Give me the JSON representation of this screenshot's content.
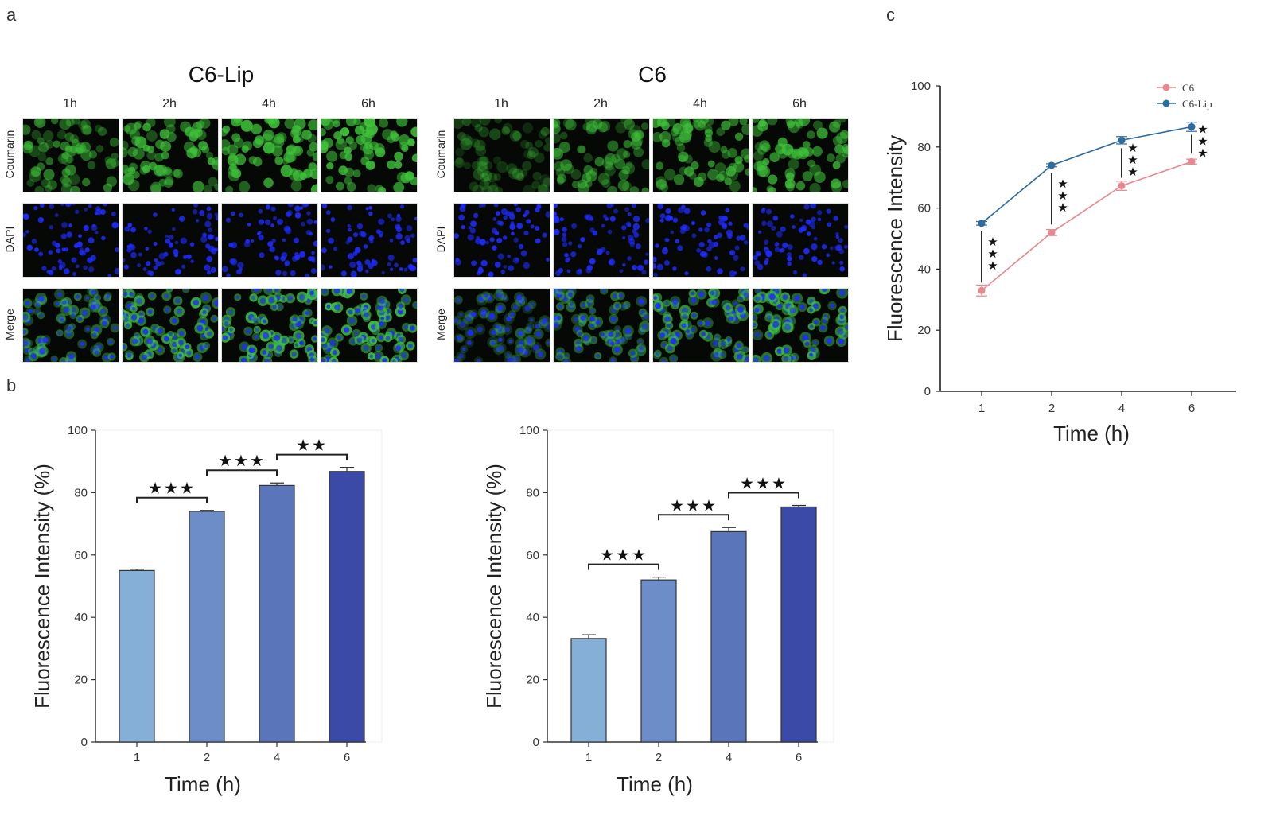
{
  "panel_labels": {
    "a": "a",
    "b": "b",
    "c": "c"
  },
  "micrographs": {
    "groups": [
      {
        "title": "C6-Lip",
        "intensity": [
          0.55,
          0.74,
          0.82,
          0.87
        ]
      },
      {
        "title": "C6",
        "intensity": [
          0.33,
          0.52,
          0.67,
          0.75
        ]
      }
    ],
    "timepoints": [
      "1h",
      "2h",
      "4h",
      "6h"
    ],
    "rows": [
      "Coumarin",
      "DAPI",
      "Merge"
    ]
  },
  "colors": {
    "bar_fills": [
      "#85afd6",
      "#6d8dc9",
      "#5b75bb",
      "#3b4aa6"
    ],
    "c6": "#e8888e",
    "c6lip": "#2c6aa0",
    "coumarin_green": "#3fc23a",
    "dapi_blue": "#1f2bff"
  },
  "chart_data": [
    {
      "type": "bar",
      "categories": [
        "1",
        "2",
        "4",
        "6"
      ],
      "values": [
        55,
        74,
        82.3,
        86.8
      ],
      "errors": [
        0.4,
        0.3,
        0.8,
        1.3
      ],
      "xlabel": "Time (h)",
      "ylabel": "Fluorescence Intensity (%)",
      "ylim": [
        0,
        100
      ],
      "yticks": [
        "0",
        "20",
        "40",
        "60",
        "80",
        "100"
      ],
      "significance": [
        {
          "from": 0,
          "to": 1,
          "label": "★★★"
        },
        {
          "from": 1,
          "to": 2,
          "label": "★★★"
        },
        {
          "from": 2,
          "to": 3,
          "label": "★★"
        }
      ]
    },
    {
      "type": "bar",
      "categories": [
        "1",
        "2",
        "4",
        "6"
      ],
      "values": [
        33.2,
        52,
        67.5,
        75.4
      ],
      "errors": [
        1.2,
        0.9,
        1.3,
        0.5
      ],
      "xlabel": "Time (h)",
      "ylabel": "Fluorescence Intensity (%)",
      "ylim": [
        0,
        100
      ],
      "yticks": [
        "0",
        "20",
        "40",
        "60",
        "80",
        "100"
      ],
      "significance": [
        {
          "from": 0,
          "to": 1,
          "label": "★★★"
        },
        {
          "from": 1,
          "to": 2,
          "label": "★★★"
        },
        {
          "from": 2,
          "to": 3,
          "label": "★★★"
        }
      ]
    },
    {
      "type": "line",
      "x": [
        "1",
        "2",
        "4",
        "6"
      ],
      "series": [
        {
          "name": "C6",
          "values": [
            33,
            52,
            67.3,
            75.2
          ],
          "errors": [
            1.8,
            1.0,
            1.5,
            0.8
          ]
        },
        {
          "name": "C6-Lip",
          "values": [
            55,
            74,
            82.2,
            86.6
          ],
          "errors": [
            0.6,
            0.5,
            1.2,
            1.5
          ]
        }
      ],
      "xlabel": "Time (h)",
      "ylabel": "Fluorescence Intensity",
      "ylim": [
        0,
        100
      ],
      "yticks": [
        "0",
        "20",
        "40",
        "60",
        "80",
        "100"
      ],
      "legend": "top-right",
      "significance_labels": [
        "★★★",
        "★★★",
        "★★★",
        "★★★"
      ]
    }
  ]
}
